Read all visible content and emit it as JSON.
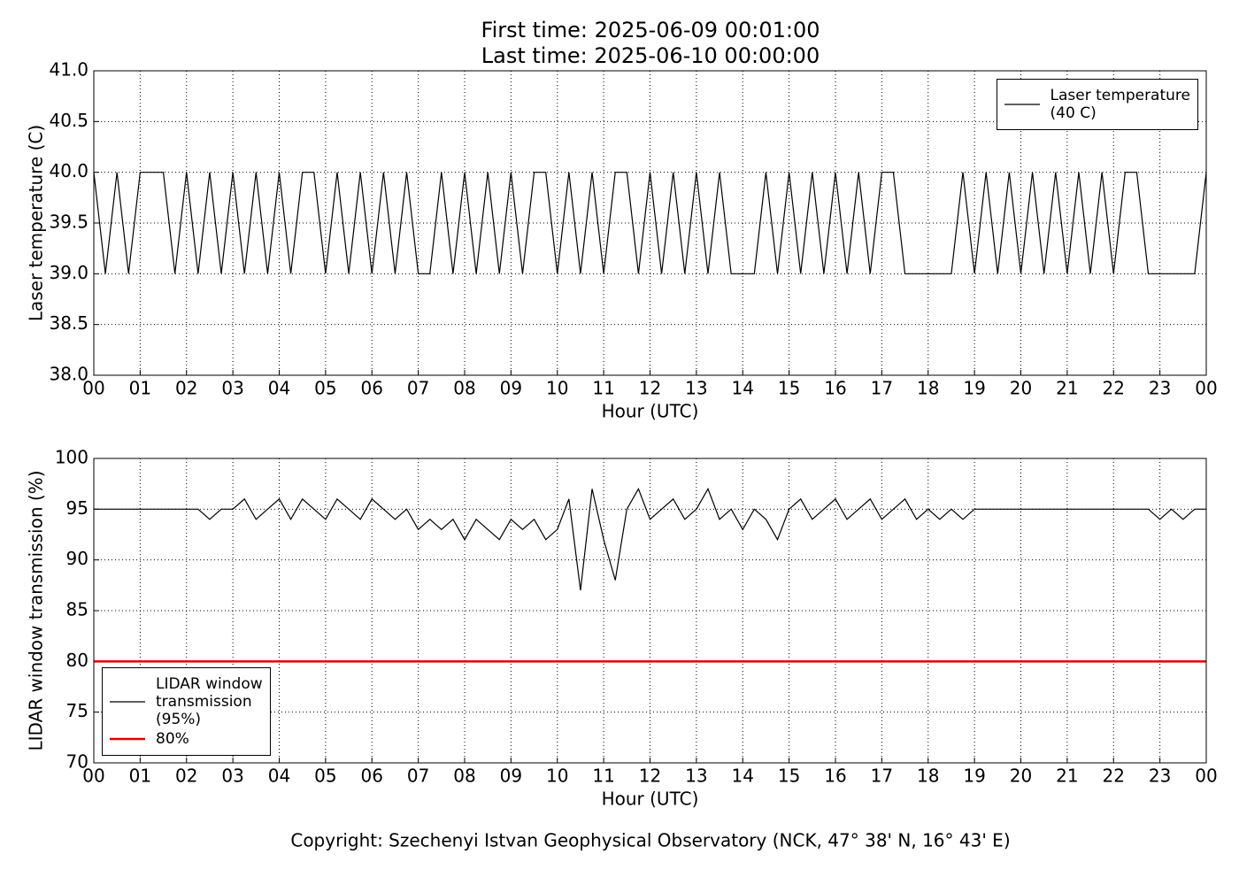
{
  "title": "First time: 2025-06-09 00:01:00",
  "subtitle": "Last time: 2025-06-10 00:00:00",
  "footer": "Copyright: Szechenyi Istvan Geophysical Observatory (NCK, 47° 38' N, 16° 43' E)",
  "chart_data": [
    {
      "type": "line",
      "x_label": "Hour (UTC)",
      "y_label": "Laser temperature (C)",
      "xlim": [
        0,
        24
      ],
      "ylim": [
        38,
        41
      ],
      "grid": true,
      "legend": "upper right",
      "xticks": [
        {
          "value": 0,
          "label": "00"
        },
        {
          "value": 1,
          "label": "01"
        },
        {
          "value": 2,
          "label": "02"
        },
        {
          "value": 3,
          "label": "03"
        },
        {
          "value": 4,
          "label": "04"
        },
        {
          "value": 5,
          "label": "05"
        },
        {
          "value": 6,
          "label": "06"
        },
        {
          "value": 7,
          "label": "07"
        },
        {
          "value": 8,
          "label": "08"
        },
        {
          "value": 9,
          "label": "09"
        },
        {
          "value": 10,
          "label": "10"
        },
        {
          "value": 11,
          "label": "11"
        },
        {
          "value": 12,
          "label": "12"
        },
        {
          "value": 13,
          "label": "13"
        },
        {
          "value": 14,
          "label": "14"
        },
        {
          "value": 15,
          "label": "15"
        },
        {
          "value": 16,
          "label": "16"
        },
        {
          "value": 17,
          "label": "17"
        },
        {
          "value": 18,
          "label": "18"
        },
        {
          "value": 19,
          "label": "19"
        },
        {
          "value": 20,
          "label": "20"
        },
        {
          "value": 21,
          "label": "21"
        },
        {
          "value": 22,
          "label": "22"
        },
        {
          "value": 23,
          "label": "23"
        },
        {
          "value": 24,
          "label": "00"
        }
      ],
      "yticks": [
        {
          "value": 38,
          "label": "38.0"
        },
        {
          "value": 38.5,
          "label": "38.5"
        },
        {
          "value": 39,
          "label": "39.0"
        },
        {
          "value": 39.5,
          "label": "39.5"
        },
        {
          "value": 40,
          "label": "40.0"
        },
        {
          "value": 40.5,
          "label": "40.5"
        },
        {
          "value": 41,
          "label": "41.0"
        }
      ],
      "series": [
        {
          "name": "Laser temperature\n(40 C)",
          "color": "#000000",
          "width": 1.2,
          "x": [
            0,
            0.25,
            0.5,
            0.75,
            1,
            1.25,
            1.5,
            1.75,
            2,
            2.25,
            2.5,
            2.75,
            3,
            3.25,
            3.5,
            3.75,
            4,
            4.25,
            4.5,
            4.75,
            5,
            5.25,
            5.5,
            5.75,
            6,
            6.25,
            6.5,
            6.75,
            7,
            7.25,
            7.5,
            7.75,
            8,
            8.25,
            8.5,
            8.75,
            9,
            9.25,
            9.5,
            9.75,
            10,
            10.25,
            10.5,
            10.75,
            11,
            11.25,
            11.5,
            11.75,
            12,
            12.25,
            12.5,
            12.75,
            13,
            13.25,
            13.5,
            13.75,
            14,
            14.25,
            14.5,
            14.75,
            15,
            15.25,
            15.5,
            15.75,
            16,
            16.25,
            16.5,
            16.75,
            17,
            17.25,
            17.5,
            17.75,
            18,
            18.25,
            18.5,
            18.75,
            19,
            19.25,
            19.5,
            19.75,
            20,
            20.25,
            20.5,
            20.75,
            21,
            21.25,
            21.5,
            21.75,
            22,
            22.25,
            22.5,
            22.75,
            23,
            23.25,
            23.5,
            23.75,
            24
          ],
          "values": [
            40,
            39,
            40,
            39,
            40,
            40,
            40,
            39,
            40,
            39,
            40,
            39,
            40,
            39,
            40,
            39,
            40,
            39,
            40,
            40,
            39,
            40,
            39,
            40,
            39,
            40,
            39,
            40,
            39,
            39,
            40,
            39,
            40,
            39,
            40,
            39,
            40,
            39,
            40,
            40,
            39,
            40,
            39,
            40,
            39,
            40,
            40,
            39,
            40,
            39,
            40,
            39,
            40,
            39,
            40,
            39,
            39,
            39,
            40,
            39,
            40,
            39,
            40,
            39,
            40,
            39,
            40,
            39,
            40,
            40,
            39,
            39,
            39,
            39,
            39,
            40,
            39,
            40,
            39,
            40,
            39,
            40,
            39,
            40,
            39,
            40,
            39,
            40,
            39,
            40,
            40,
            39,
            39,
            39,
            39,
            39,
            40
          ]
        }
      ]
    },
    {
      "type": "line",
      "x_label": "Hour (UTC)",
      "y_label": "LIDAR window transmission (%)",
      "xlim": [
        0,
        24
      ],
      "ylim": [
        70,
        100
      ],
      "grid": true,
      "legend": "lower left",
      "xticks": [
        {
          "value": 0,
          "label": "00"
        },
        {
          "value": 1,
          "label": "01"
        },
        {
          "value": 2,
          "label": "02"
        },
        {
          "value": 3,
          "label": "03"
        },
        {
          "value": 4,
          "label": "04"
        },
        {
          "value": 5,
          "label": "05"
        },
        {
          "value": 6,
          "label": "06"
        },
        {
          "value": 7,
          "label": "07"
        },
        {
          "value": 8,
          "label": "08"
        },
        {
          "value": 9,
          "label": "09"
        },
        {
          "value": 10,
          "label": "10"
        },
        {
          "value": 11,
          "label": "11"
        },
        {
          "value": 12,
          "label": "12"
        },
        {
          "value": 13,
          "label": "13"
        },
        {
          "value": 14,
          "label": "14"
        },
        {
          "value": 15,
          "label": "15"
        },
        {
          "value": 16,
          "label": "16"
        },
        {
          "value": 17,
          "label": "17"
        },
        {
          "value": 18,
          "label": "18"
        },
        {
          "value": 19,
          "label": "19"
        },
        {
          "value": 20,
          "label": "20"
        },
        {
          "value": 21,
          "label": "21"
        },
        {
          "value": 22,
          "label": "22"
        },
        {
          "value": 23,
          "label": "23"
        },
        {
          "value": 24,
          "label": "00"
        }
      ],
      "yticks": [
        70,
        75,
        80,
        85,
        90,
        95,
        100
      ],
      "series": [
        {
          "name": "LIDAR window\ntransmission\n(95%)",
          "color": "#000000",
          "width": 1.2,
          "x": [
            0,
            0.25,
            0.5,
            0.75,
            1,
            1.25,
            1.5,
            1.75,
            2,
            2.25,
            2.5,
            2.75,
            3,
            3.25,
            3.5,
            3.75,
            4,
            4.25,
            4.5,
            4.75,
            5,
            5.25,
            5.5,
            5.75,
            6,
            6.25,
            6.5,
            6.75,
            7,
            7.25,
            7.5,
            7.75,
            8,
            8.25,
            8.5,
            8.75,
            9,
            9.25,
            9.5,
            9.75,
            10,
            10.25,
            10.5,
            10.75,
            11,
            11.25,
            11.5,
            11.75,
            12,
            12.25,
            12.5,
            12.75,
            13,
            13.25,
            13.5,
            13.75,
            14,
            14.25,
            14.5,
            14.75,
            15,
            15.25,
            15.5,
            15.75,
            16,
            16.25,
            16.5,
            16.75,
            17,
            17.25,
            17.5,
            17.75,
            18,
            18.25,
            18.5,
            18.75,
            19,
            19.25,
            19.5,
            19.75,
            20,
            20.25,
            20.5,
            20.75,
            21,
            21.25,
            21.5,
            21.75,
            22,
            22.25,
            22.5,
            22.75,
            23,
            23.25,
            23.5,
            23.75,
            24
          ],
          "values": [
            95,
            95,
            95,
            95,
            95,
            95,
            95,
            95,
            95,
            95,
            94,
            95,
            95,
            96,
            94,
            95,
            96,
            94,
            96,
            95,
            94,
            96,
            95,
            94,
            96,
            95,
            94,
            95,
            93,
            94,
            93,
            94,
            92,
            94,
            93,
            92,
            94,
            93,
            94,
            92,
            93,
            96,
            87,
            97,
            92,
            88,
            95,
            97,
            94,
            95,
            96,
            94,
            95,
            97,
            94,
            95,
            93,
            95,
            94,
            92,
            95,
            96,
            94,
            95,
            96,
            94,
            95,
            96,
            94,
            95,
            96,
            94,
            95,
            94,
            95,
            94,
            95,
            95,
            95,
            95,
            95,
            95,
            95,
            95,
            95,
            95,
            95,
            95,
            95,
            95,
            95,
            95,
            94,
            95,
            94,
            95,
            95
          ]
        },
        {
          "name": "80%",
          "color": "#e00000",
          "width": 2.5,
          "x": [
            0,
            24
          ],
          "values": [
            80,
            80
          ]
        }
      ]
    }
  ]
}
